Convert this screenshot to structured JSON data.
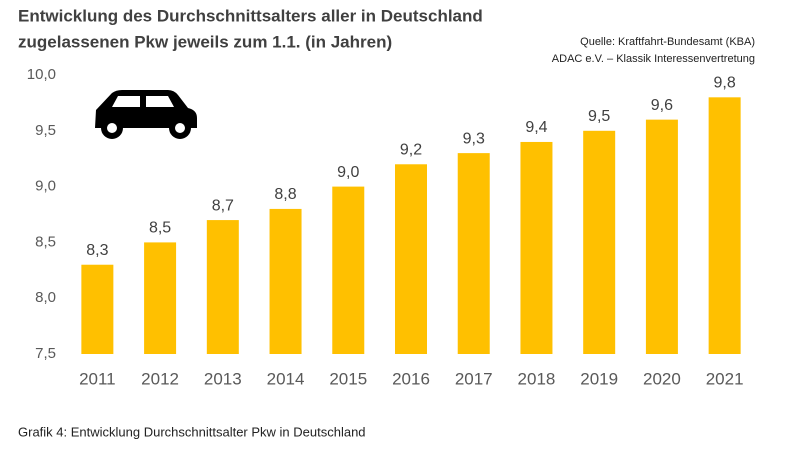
{
  "chart_data": {
    "type": "bar",
    "title": [
      "Entwicklung des Durchschnittsalters aller in Deutschland",
      "zugelassenen Pkw jeweils zum 1.1. (in Jahren)"
    ],
    "source": [
      "Quelle: Kraftfahrt-Bundesamt (KBA)",
      "ADAC e.V. – Klassik Interessenvertretung"
    ],
    "categories": [
      "2011",
      "2012",
      "2013",
      "2014",
      "2015",
      "2016",
      "2017",
      "2018",
      "2019",
      "2020",
      "2021"
    ],
    "values": [
      8.3,
      8.5,
      8.7,
      8.8,
      9.0,
      9.2,
      9.3,
      9.4,
      9.5,
      9.6,
      9.8
    ],
    "value_labels": [
      "8,3",
      "8,5",
      "8,7",
      "8,8",
      "9,0",
      "9,2",
      "9,3",
      "9,4",
      "9,5",
      "9,6",
      "9,8"
    ],
    "color": "#ffc000",
    "ylim": [
      7.5,
      10.0
    ],
    "yticks": [
      {
        "value": 7.5,
        "label": "7,5"
      },
      {
        "value": 8.0,
        "label": "8,0"
      },
      {
        "value": 8.5,
        "label": "8,5"
      },
      {
        "value": 9.0,
        "label": "9,0"
      },
      {
        "value": 9.5,
        "label": "9,5"
      },
      {
        "value": 10.0,
        "label": "10,0"
      }
    ],
    "grid": false
  },
  "caption": "Grafik 4: Entwicklung Durchschnittsalter Pkw in Deutschland"
}
